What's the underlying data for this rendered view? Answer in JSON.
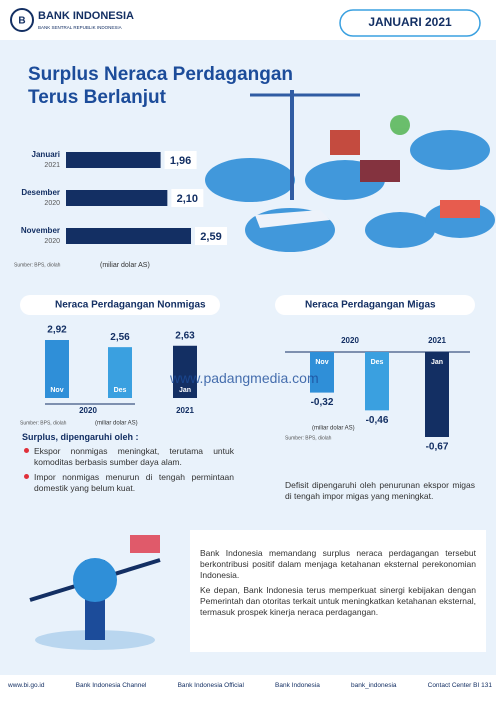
{
  "header": {
    "logo": "BANK INDONESIA",
    "logo_sub": "BANK SENTRAL REPUBLIK INDONESIA",
    "period": "JANUARI 2021"
  },
  "title_lines": [
    "Surplus Neraca Perdagangan",
    "Terus Berlanjut"
  ],
  "surplus_chart": {
    "type": "bar",
    "months": [
      "Januari",
      "Desember",
      "November"
    ],
    "years": [
      "2021",
      "2020",
      "2020"
    ],
    "values": [
      1.96,
      2.1,
      2.59
    ],
    "value_labels": [
      "1,96",
      "2,10",
      "2,59"
    ],
    "unit": "(miliar dolar AS)",
    "source": "Sumber: BPS, diolah",
    "color": "#132f63"
  },
  "nonmigas_chart": {
    "type": "bar",
    "title": "Neraca Perdagangan Nonmigas",
    "categories": [
      "Nov",
      "Des",
      "Jan"
    ],
    "values": [
      2.92,
      2.56,
      2.63
    ],
    "value_labels": [
      "2,92",
      "2,56",
      "2,63"
    ],
    "years": [
      "2020",
      "2021"
    ],
    "unit": "(miliar dolar AS)",
    "source": "Sumber: BPS, diolah",
    "colors": [
      "#2f8fd8",
      "#3aa0e0",
      "#132f63"
    ]
  },
  "migas_chart": {
    "type": "bar",
    "title": "Neraca Perdagangan Migas",
    "categories": [
      "Nov",
      "Des",
      "Jan"
    ],
    "values": [
      -0.32,
      -0.46,
      -0.67
    ],
    "value_labels": [
      "-0,32",
      "-0,46",
      "-0,67"
    ],
    "years": [
      "2020",
      "2021"
    ],
    "unit": "(miliar dolar AS)",
    "source": "Sumber: BPS, diolah",
    "colors": [
      "#2f8fd8",
      "#3aa0e0",
      "#132f63"
    ]
  },
  "notes": {
    "heading": "Surplus, dipengaruhi oleh :",
    "bullets": [
      "Ekspor nonmigas meningkat, terutama untuk komoditas berbasis sumber daya alam.",
      "Impor nonmigas menurun di tengah permintaan domestik yang belum kuat."
    ]
  },
  "migas_note": "Defisit dipengaruhi oleh penurunan ekspor migas di tengah impor migas yang meningkat.",
  "paragraphs": [
    "Bank Indonesia memandang surplus neraca perdagangan tersebut berkontribusi positif dalam menjaga ketahanan eksternal perekonomian Indonesia.",
    "Ke depan, Bank Indonesia terus memperkuat sinergi kebijakan dengan Pemerintah dan otoritas terkait untuk meningkatkan ketahanan eksternal, termasuk prospek kinerja neraca perdagangan."
  ],
  "watermark": "www.padangmedia.com",
  "footer": [
    "www.bi.go.id",
    "Bank Indonesia Channel",
    "Bank Indonesia Official",
    "Bank Indonesia",
    "bank_indonesia",
    "Contact Center BI 131"
  ]
}
